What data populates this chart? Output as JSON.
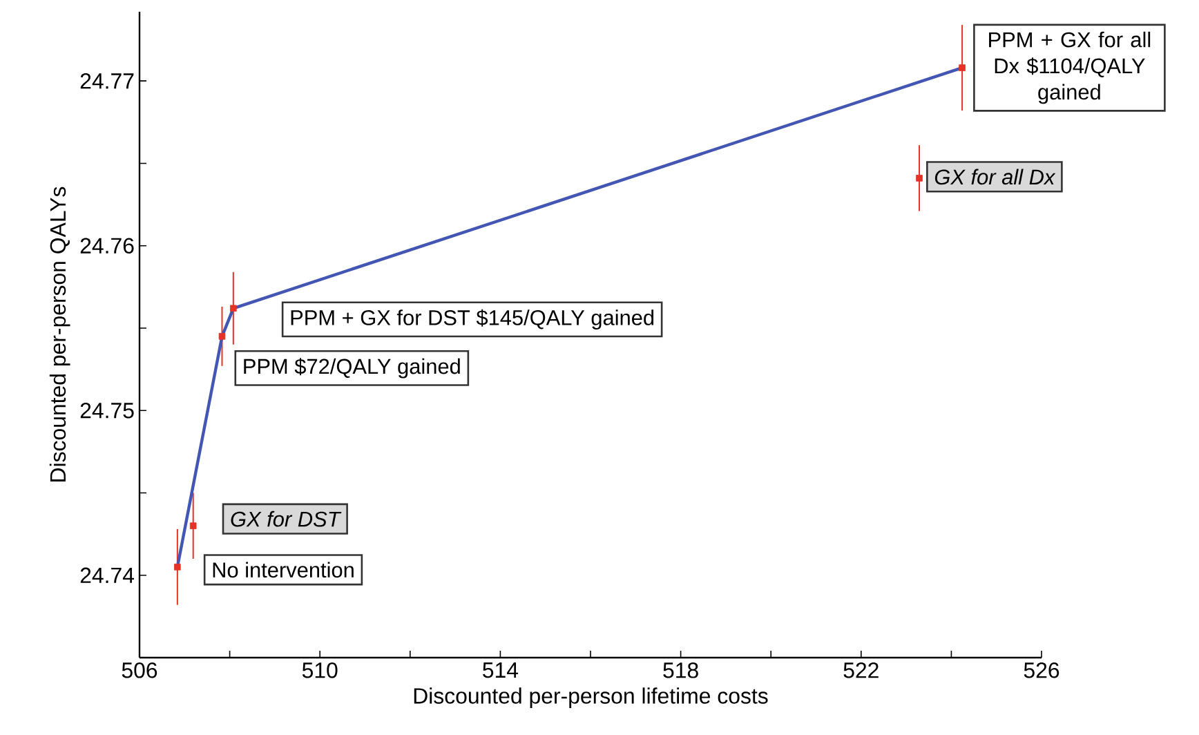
{
  "chart_data": {
    "type": "scatter",
    "xlabel": "Discounted per-person lifetime costs",
    "ylabel": "Discounted per-person QALYs",
    "xlim": [
      506,
      526
    ],
    "ylim": [
      24.735,
      24.7742
    ],
    "xticks": [
      506,
      {
        "value": 508,
        "label": null
      },
      510,
      {
        "value": 512,
        "label": null
      },
      514,
      {
        "value": 516,
        "label": null
      },
      518,
      {
        "value": 520,
        "label": null
      },
      522,
      {
        "value": 524,
        "label": null
      },
      526
    ],
    "yticks": [
      24.74,
      {
        "value": 24.745,
        "label": null
      },
      24.75,
      {
        "value": 24.755,
        "label": null
      },
      24.76,
      {
        "value": 24.765,
        "label": null
      },
      24.77
    ],
    "marker": "square",
    "series": [
      {
        "color": "#e53227",
        "x": [
          506.84,
          507.19,
          507.83,
          508.08,
          523.29,
          524.24
        ],
        "values": [
          24.7405,
          24.743,
          24.7545,
          24.7562,
          24.7641,
          24.7708
        ],
        "errors": [
          0.0023,
          0.002,
          0.0018,
          0.0022,
          0.002,
          0.0026
        ]
      },
      {
        "type": "line",
        "color": "#4356b4",
        "marker": "none",
        "x": [
          506.84,
          507.83,
          508.08,
          524.24
        ],
        "values": [
          24.7405,
          24.7545,
          24.7562,
          24.7708
        ]
      }
    ],
    "annotations": [
      {
        "text": "No intervention",
        "x": 506.84,
        "y": 24.7405
      },
      {
        "text": "GX for DST",
        "x": 507.19,
        "y": 24.743
      },
      {
        "text": "PPM $72/QALY gained",
        "x": 507.83,
        "y": 24.7545
      },
      {
        "text": "PPM + GX for DST $145/QALY gained",
        "x": 508.08,
        "y": 24.7562
      },
      {
        "text": "GX for all Dx",
        "x": 523.29,
        "y": 24.7641
      },
      {
        "text": "PPM + GX for all Dx $1104/QALY gained",
        "x": 524.24,
        "y": 24.7708
      }
    ]
  }
}
